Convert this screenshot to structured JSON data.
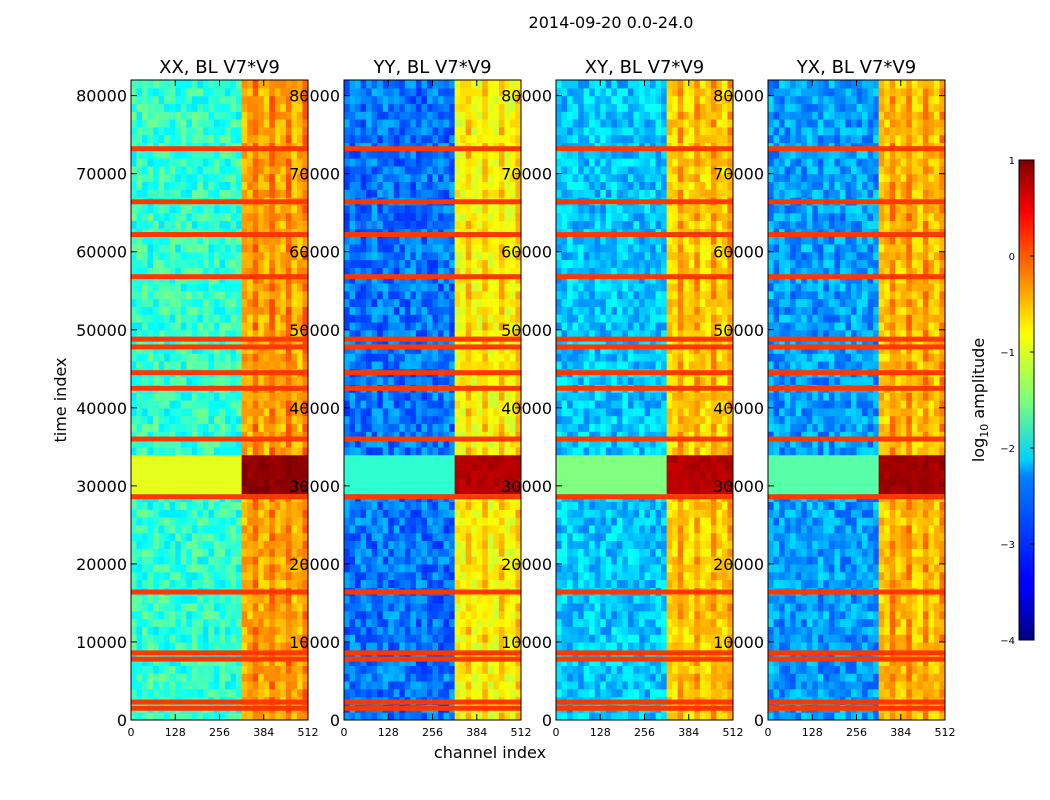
{
  "chart_data": {
    "type": "heatmap",
    "suptitle": "2014-09-20 0.0-24.0",
    "xlabel": "channel index",
    "ylabel": "time index",
    "xlim": [
      0,
      512
    ],
    "ylim": [
      0,
      82000
    ],
    "xticks": [
      0,
      128,
      256,
      384,
      512
    ],
    "yticks": [
      0,
      10000,
      20000,
      30000,
      40000,
      50000,
      60000,
      70000,
      80000
    ],
    "panels": [
      {
        "title": "XX, BL V7*V9",
        "base_level": -1.9,
        "band_level": -0.5,
        "burst_level": 0.9
      },
      {
        "title": "YY, BL V7*V9",
        "base_level": -2.8,
        "band_level": -0.9,
        "burst_level": 0.7
      },
      {
        "title": "XY, BL V7*V9",
        "base_level": -2.4,
        "band_level": -0.7,
        "burst_level": 0.7
      },
      {
        "title": "YX, BL V7*V9",
        "base_level": -2.6,
        "band_level": -0.6,
        "burst_level": 0.8
      }
    ],
    "band_channels": [
      320,
      512
    ],
    "burst_time_range": [
      29500,
      33500
    ],
    "strong_rfi_rows": [
      1500,
      2300,
      7800,
      8600,
      16400,
      28600,
      36000,
      42500,
      44500,
      47800,
      48800,
      56800,
      62200,
      66400,
      73200
    ],
    "colorbar": {
      "label": "log",
      "label_sub": "10",
      "label_suffix": " amplitude",
      "range": [
        -4,
        1
      ],
      "ticks": [
        -4,
        -3,
        -2,
        -1,
        0,
        1
      ],
      "tick_labels": [
        "−4",
        "−3",
        "−2",
        "−1",
        "0",
        "1"
      ],
      "colormap": "jet"
    }
  }
}
